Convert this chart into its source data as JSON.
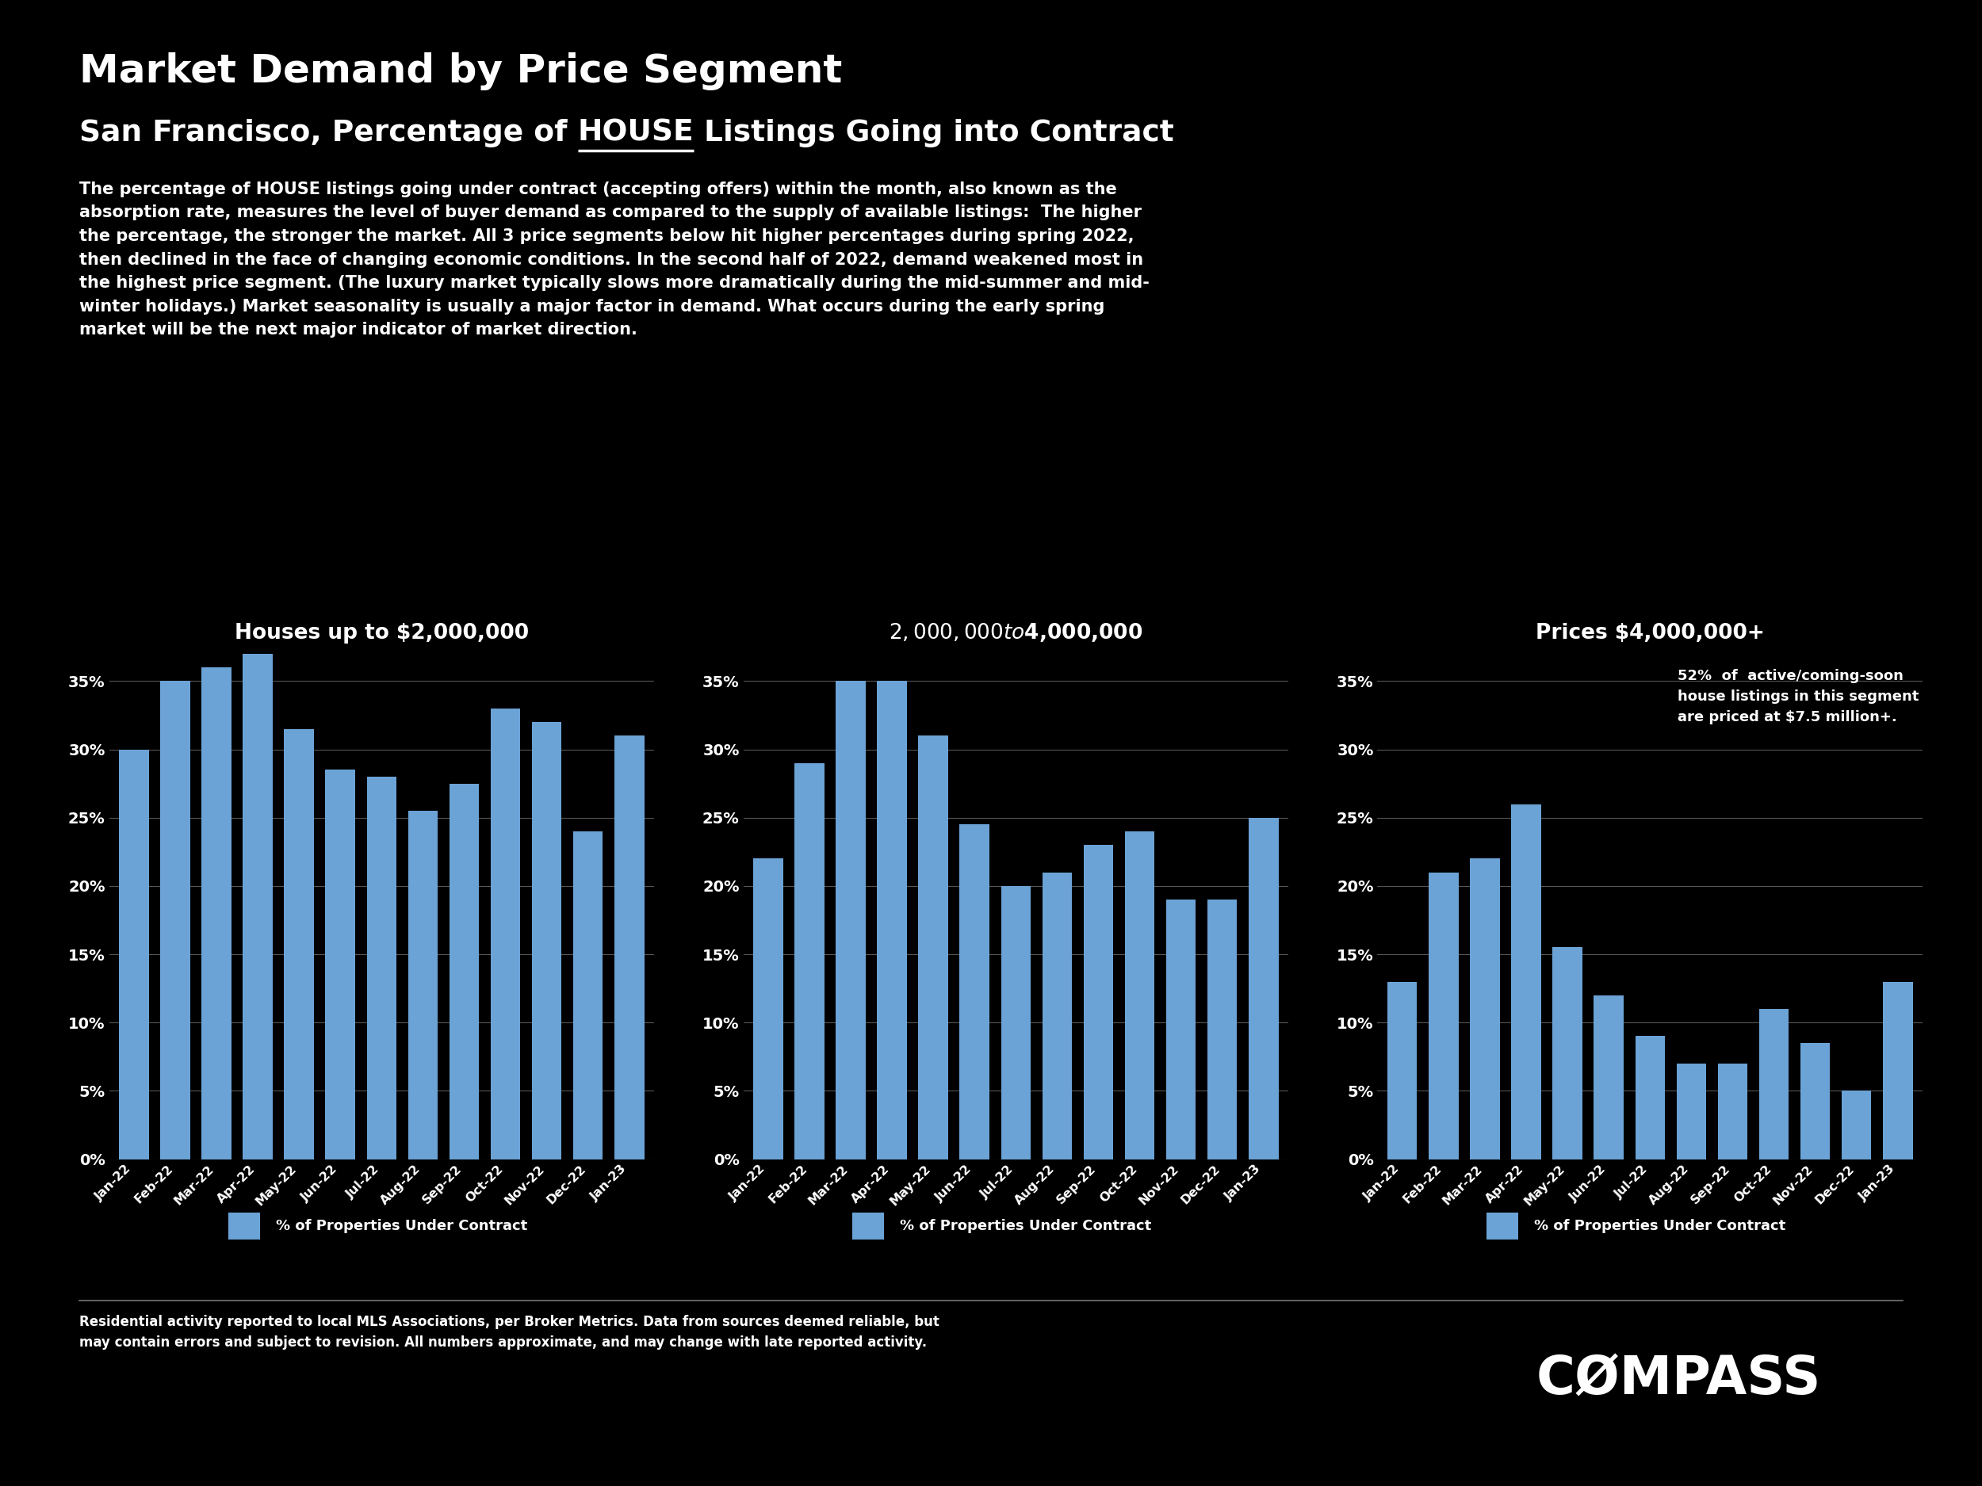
{
  "title": "Market Demand by Price Segment",
  "subtitle_pre": "San Francisco, Percentage of ",
  "subtitle_mid": "HOUSE",
  "subtitle_post": " Listings Going into Contract",
  "desc_lines": [
    "The percentage of HOUSE listings going under contract (accepting offers) within the month, also known as the",
    "absorption rate, measures the level of buyer demand as compared to the supply of available listings:  The higher",
    "the percentage, the stronger the market. All 3 price segments below hit higher percentages during spring 2022,",
    "then declined in the face of changing economic conditions. In the second half of 2022, demand weakened most in",
    "the highest price segment. (The luxury market typically slows more dramatically during the mid-summer and mid-",
    "winter holidays.) Market seasonality is usually a major factor in demand. What occurs during the early spring",
    "market will be the next major indicator of market direction."
  ],
  "months": [
    "Jan-22",
    "Feb-22",
    "Mar-22",
    "Apr-22",
    "May-22",
    "Jun-22",
    "Jul-22",
    "Aug-22",
    "Sep-22",
    "Oct-22",
    "Nov-22",
    "Dec-22",
    "Jan-23"
  ],
  "chart1_title": "Houses up to $2,000,000",
  "chart1_values": [
    30,
    35,
    36,
    37,
    31.5,
    28.5,
    28,
    25.5,
    27.5,
    33,
    32,
    24,
    31
  ],
  "chart2_title": "$2,000,000 to $4,000,000",
  "chart2_values": [
    22,
    29,
    35,
    35,
    31,
    24.5,
    20,
    21,
    23,
    24,
    19,
    19,
    25
  ],
  "chart3_title": "Prices $4,000,000+",
  "chart3_values": [
    13,
    21,
    22,
    26,
    15.5,
    12,
    9,
    7,
    7,
    11,
    8.5,
    5,
    13
  ],
  "chart3_annotation": "52%  of  active/coming-soon\nhouse listings in this segment\nare priced at $7.5 million+.",
  "bar_color": "#6BA3D6",
  "grid_color": "#555555",
  "background_color": "#000000",
  "text_color": "#ffffff",
  "legend_label": "% of Properties Under Contract",
  "footer_text": "Residential activity reported to local MLS Associations, per Broker Metrics. Data from sources deemed reliable, but\nmay contain errors and subject to revision. All numbers approximate, and may change with late reported activity.",
  "compass_text": "CØMPASS",
  "ylim": [
    0,
    37
  ],
  "yticks": [
    0,
    5,
    10,
    15,
    20,
    25,
    30,
    35
  ]
}
